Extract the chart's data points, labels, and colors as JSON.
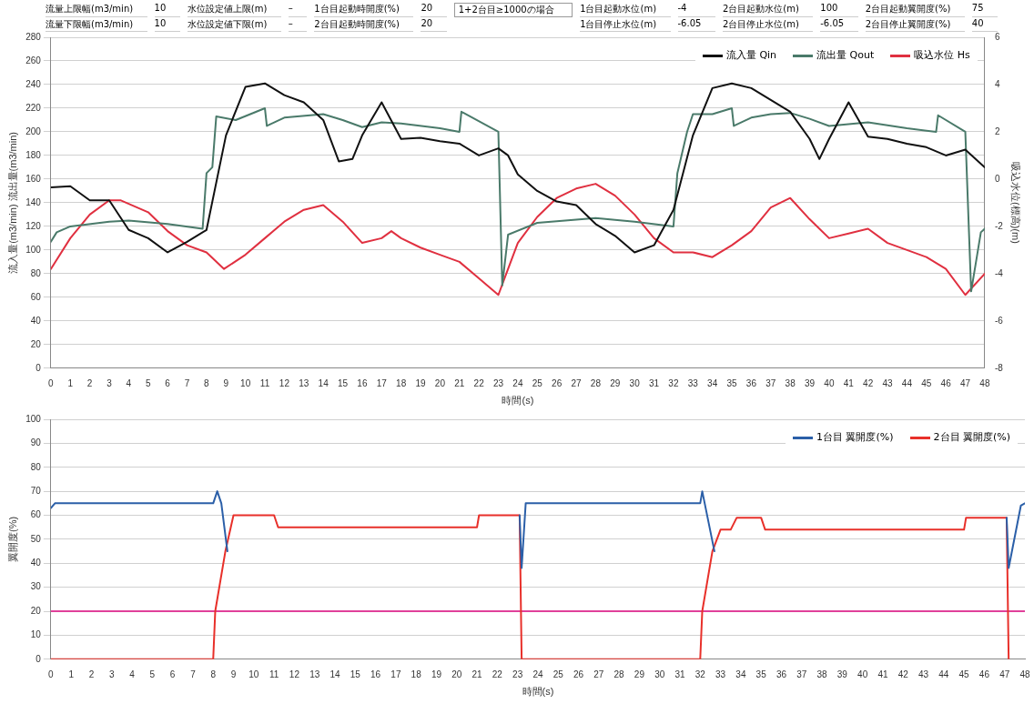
{
  "chart_data": [
    {
      "type": "line",
      "annotations": [
        "流量上限幅(m3/min)",
        "10",
        "水位設定値上限(m)",
        "–",
        "1台目起動時開度(%)",
        "20",
        "1台目起動水位(m)",
        "-4",
        "2台目起動水位(m)",
        "100",
        "2台目起動翼開度(%)",
        "75",
        "流量下限幅(m3/min)",
        "10",
        "水位設定値下限(m)",
        "–",
        "2台目起動時開度(%)",
        "20",
        "1台目停止水位(m)",
        "-6.05",
        "2台目停止水位(m)",
        "-6.05",
        "2台目停止翼開度(%)",
        "40",
        "1+2台目≥1000の場合"
      ],
      "xlabel": "時間(s)",
      "ylabel": "流入量(m3/min) 流出量(m3/min)",
      "y2label": "吸込水位(標高)(m)",
      "xlim": [
        0,
        48
      ],
      "xticks": [
        0,
        1,
        2,
        3,
        4,
        5,
        6,
        7,
        8,
        9,
        10,
        11,
        12,
        13,
        14,
        15,
        16,
        17,
        18,
        19,
        20,
        21,
        22,
        23,
        24,
        25,
        26,
        27,
        28,
        29,
        30,
        31,
        32,
        33,
        34,
        35,
        36,
        37,
        38,
        39,
        40,
        41,
        42,
        43,
        44,
        45,
        46,
        47,
        48
      ],
      "ylim": [
        0,
        280
      ],
      "yticks": [
        0,
        20,
        40,
        60,
        80,
        100,
        120,
        140,
        160,
        180,
        200,
        220,
        240,
        260,
        280
      ],
      "y2lim": [
        -8,
        6
      ],
      "y2ticks": [
        -8,
        -6,
        -4,
        -2,
        0,
        2,
        4,
        6
      ],
      "grid": "y",
      "legend": "top right",
      "marker": "none",
      "series": [
        {
          "name": "流入量 Qin",
          "color": "#111111",
          "x": [
            0,
            1,
            2,
            3,
            4,
            5,
            6,
            7,
            8,
            9,
            10,
            11,
            12,
            13,
            14,
            14.8,
            15.5,
            16,
            17,
            18,
            19,
            20,
            21,
            22,
            23,
            23.5,
            24,
            25,
            26,
            27,
            28,
            29,
            30,
            31,
            32,
            33,
            34,
            35,
            36,
            37,
            38,
            39,
            39.5,
            40,
            41,
            42,
            43,
            44,
            45,
            46,
            47,
            48
          ],
          "values": [
            153,
            154,
            142,
            142,
            117,
            110,
            98,
            107,
            117,
            197,
            238,
            241,
            231,
            225,
            210,
            175,
            177,
            197,
            225,
            194,
            195,
            192,
            190,
            180,
            186,
            180,
            164,
            150,
            141,
            138,
            122,
            112,
            98,
            104,
            134,
            197,
            237,
            241,
            237,
            227,
            217,
            194,
            177,
            194,
            225,
            196,
            194,
            190,
            187,
            180,
            185,
            170
          ]
        },
        {
          "name": "流出量 Qout",
          "color": "#4a7a6a",
          "x": [
            0,
            0.3,
            1,
            3,
            4,
            6,
            7.8,
            8,
            8.3,
            8.5,
            9.5,
            11,
            11.1,
            12,
            14,
            15,
            16,
            17,
            18,
            20,
            21,
            21.1,
            23,
            23.2,
            23.5,
            25,
            28,
            30,
            32,
            32.2,
            32.7,
            33,
            34,
            35,
            35.1,
            36,
            37,
            38,
            39,
            40,
            42,
            44,
            45.5,
            45.6,
            47,
            47.3,
            47.8,
            48
          ],
          "values": [
            107,
            115,
            120,
            124,
            125,
            122,
            118,
            165,
            170,
            213,
            210,
            220,
            205,
            212,
            215,
            210,
            204,
            208,
            207,
            203,
            200,
            217,
            200,
            70,
            113,
            123,
            127,
            124,
            120,
            165,
            200,
            215,
            215,
            220,
            205,
            212,
            215,
            216,
            211,
            205,
            208,
            203,
            200,
            214,
            200,
            65,
            115,
            118
          ]
        },
        {
          "name": "吸込水位 Hs",
          "color": "#e03040",
          "axis": "y2",
          "x": [
            0,
            1,
            2,
            3,
            3.6,
            5,
            6,
            7,
            8,
            8.9,
            10,
            11,
            12,
            13,
            14,
            15,
            16,
            17,
            17.5,
            18,
            19,
            20,
            21,
            22,
            23,
            23.5,
            24,
            25,
            26,
            27,
            28,
            29,
            30,
            31,
            32,
            33,
            34,
            35,
            36,
            37,
            38,
            39,
            40,
            41,
            42,
            43,
            44,
            45,
            46,
            47,
            48
          ],
          "values": [
            -3.8,
            -2.5,
            -1.5,
            -0.9,
            -0.9,
            -1.4,
            -2.2,
            -2.8,
            -3.1,
            -3.8,
            -3.2,
            -2.5,
            -1.8,
            -1.3,
            -1.1,
            -1.8,
            -2.7,
            -2.5,
            -2.2,
            -2.5,
            -2.9,
            -3.2,
            -3.5,
            -4.2,
            -4.9,
            -3.8,
            -2.7,
            -1.6,
            -0.8,
            -0.4,
            -0.2,
            -0.7,
            -1.5,
            -2.5,
            -3.1,
            -3.1,
            -3.3,
            -2.8,
            -2.2,
            -1.2,
            -0.8,
            -1.7,
            -2.5,
            -2.3,
            -2.1,
            -2.7,
            -3,
            -3.3,
            -3.8,
            -4.9,
            -4
          ]
        }
      ]
    },
    {
      "type": "line",
      "xlabel": "時間(s)",
      "ylabel": "翼開度(%)",
      "xlim": [
        0,
        48
      ],
      "xticks": [
        0,
        1,
        2,
        3,
        4,
        5,
        6,
        7,
        8,
        9,
        10,
        11,
        12,
        13,
        14,
        15,
        16,
        17,
        18,
        19,
        20,
        21,
        22,
        23,
        24,
        25,
        26,
        27,
        28,
        29,
        30,
        31,
        32,
        33,
        34,
        35,
        36,
        37,
        38,
        39,
        40,
        41,
        42,
        43,
        44,
        45,
        46,
        47,
        48
      ],
      "ylim": [
        0,
        100
      ],
      "yticks": [
        0,
        10,
        20,
        30,
        40,
        50,
        60,
        70,
        80,
        90,
        100
      ],
      "grid": "y",
      "legend": "top right",
      "marker": "none",
      "ref_lines": [
        {
          "axis": "y",
          "value": 20,
          "color": "#e0409a"
        }
      ],
      "series": [
        {
          "name": "1台目 翼開度(%)",
          "color": "#2b5fa8",
          "x": [
            0,
            0.2,
            8,
            8.2,
            8.4,
            8.7,
            9,
            23.1,
            23.2,
            23.4,
            32,
            32.1,
            32.7,
            33,
            47.1,
            47.2,
            47.8,
            48
          ],
          "values": [
            63,
            65,
            65,
            70,
            65,
            45,
            null,
            60,
            38,
            65,
            65,
            70,
            45,
            null,
            59,
            38,
            64,
            65
          ]
        },
        {
          "name": "2台目 翼開度(%)",
          "color": "#e8302a",
          "x": [
            0,
            8,
            8.1,
            8.6,
            9,
            11,
            11.2,
            21,
            21.1,
            23.1,
            23.2,
            32,
            32.1,
            32.6,
            33,
            33.5,
            33.8,
            35,
            35.2,
            45,
            45.1,
            47.1,
            47.2
          ],
          "values": [
            0,
            0,
            20,
            45,
            60,
            60,
            55,
            55,
            60,
            60,
            0,
            0,
            20,
            45,
            54,
            54,
            59,
            59,
            54,
            54,
            59,
            59,
            0
          ]
        }
      ]
    }
  ]
}
